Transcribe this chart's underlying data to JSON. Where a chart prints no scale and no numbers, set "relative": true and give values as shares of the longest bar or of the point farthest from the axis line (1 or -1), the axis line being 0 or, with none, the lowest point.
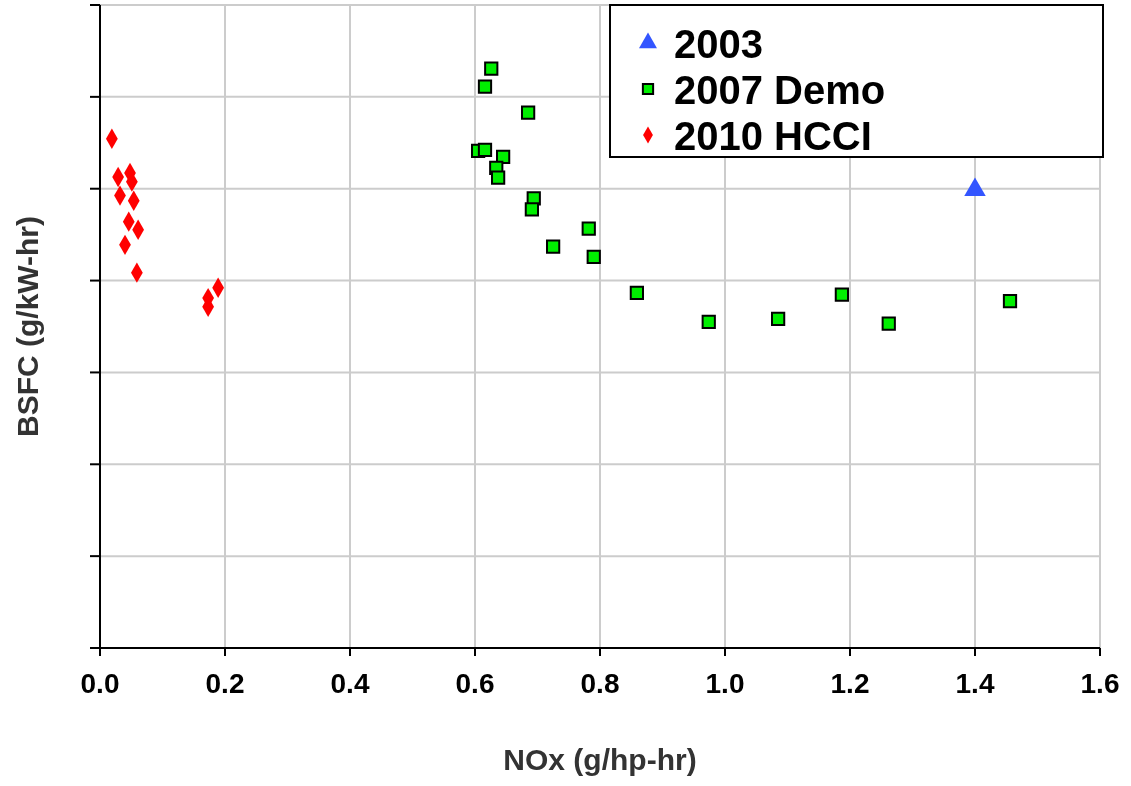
{
  "chart_data": {
    "type": "scatter",
    "xlabel": "NOx (g/hp-hr)",
    "ylabel": "BSFC (g/kW-hr)",
    "relative": true,
    "xlim": [
      0,
      1.6
    ],
    "xticks": [
      {
        "value": 0,
        "label": "0.0"
      },
      0.2,
      0.4,
      0.6,
      0.8,
      {
        "value": 1,
        "label": "1.0"
      },
      1.2,
      1.4,
      1.6
    ],
    "grid": true,
    "legend": "top right",
    "series": [
      {
        "name": "2003",
        "color": "#3355ff",
        "marker": "triangle",
        "x": [
          1.4
        ],
        "values": [
          0.791
        ]
      },
      {
        "name": "2007 Demo",
        "color": "#00ee00",
        "marker": "square",
        "x": [
          0.626,
          0.616,
          0.685,
          0.605,
          0.616,
          0.645,
          0.634,
          0.637,
          0.694,
          0.691,
          0.782,
          0.725,
          0.79,
          0.859,
          0.974,
          1.085,
          1.187,
          1.262,
          1.456
        ],
        "values": [
          1,
          0.969,
          0.924,
          0.858,
          0.86,
          0.848,
          0.829,
          0.812,
          0.776,
          0.757,
          0.724,
          0.693,
          0.675,
          0.613,
          0.563,
          0.568,
          0.61,
          0.56,
          0.599
        ]
      },
      {
        "name": "2010 HCCI",
        "color": "#ff0000",
        "marker": "diamond",
        "x": [
          0.019,
          0.029,
          0.048,
          0.051,
          0.032,
          0.054,
          0.046,
          0.061,
          0.04,
          0.059,
          0.189,
          0.173,
          0.173
        ],
        "values": [
          0.879,
          0.813,
          0.82,
          0.805,
          0.781,
          0.772,
          0.736,
          0.722,
          0.696,
          0.648,
          0.622,
          0.604,
          0.589
        ]
      }
    ]
  }
}
